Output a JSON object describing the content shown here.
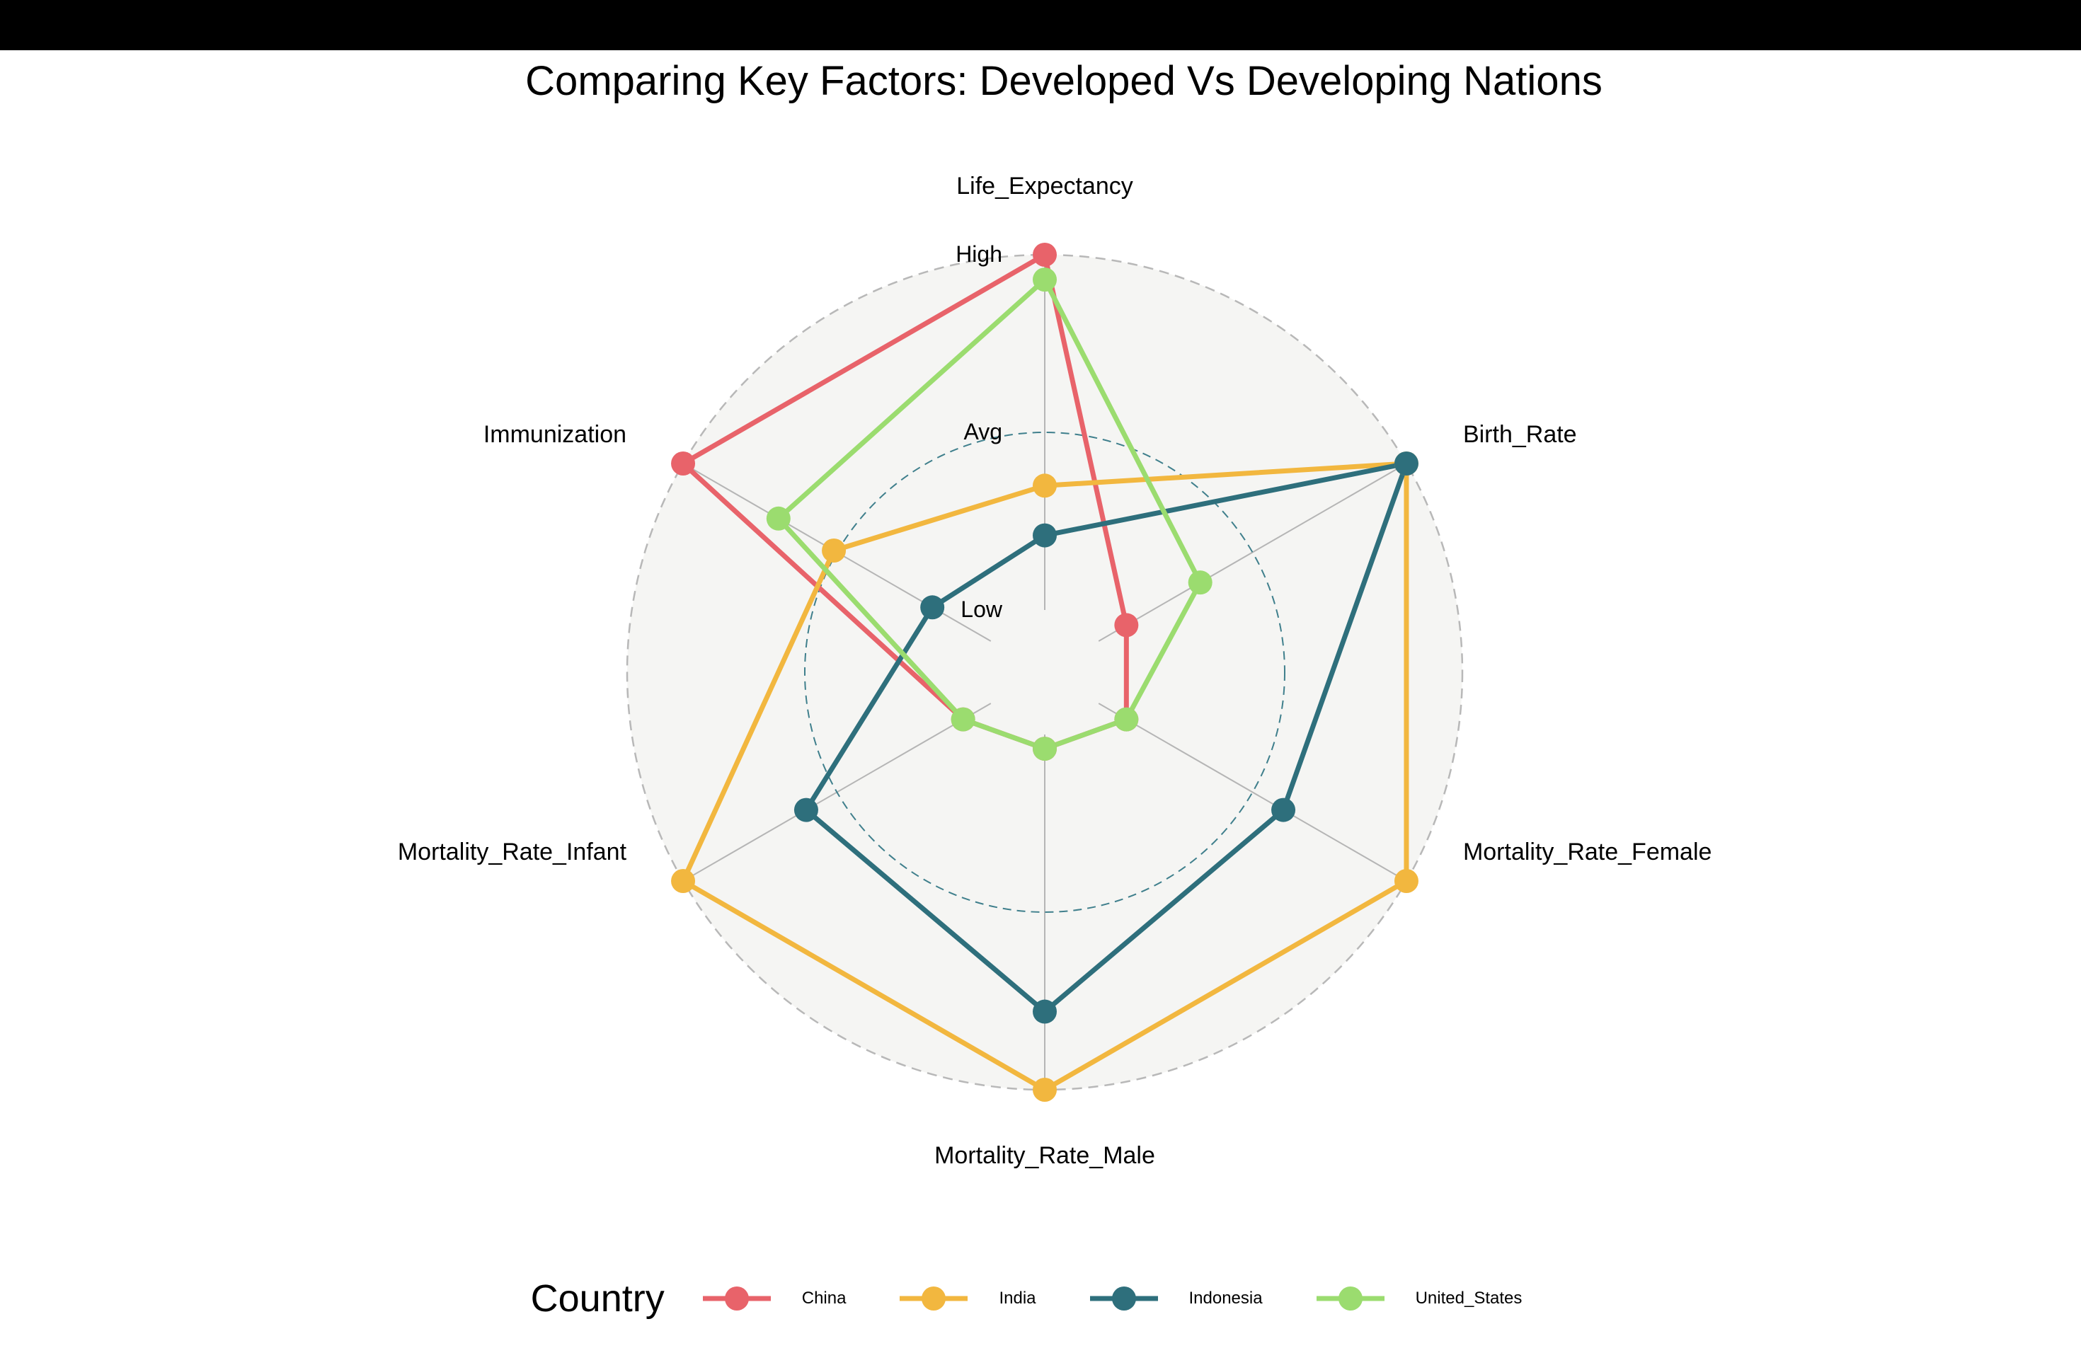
{
  "chart_data": {
    "type": "radar",
    "title": "Comparing Key Factors: Developed Vs Developing Nations",
    "axes": [
      "Life_Expectancy",
      "Birth_Rate",
      "Mortality_Rate_Female",
      "Mortality_Rate_Male",
      "Mortality_Rate_Infant",
      "Immunization"
    ],
    "scale_labels": [
      "Low",
      "Avg",
      "High"
    ],
    "scale_values": [
      0,
      0.5,
      1
    ],
    "grid": "dashed circles at Avg and High",
    "legend": {
      "title": "Country",
      "position": "bottom"
    },
    "series": [
      {
        "name": "China",
        "color": "#e8636a",
        "values": [
          1.0,
          0.09,
          0.09,
          0.04,
          0.09,
          1.0
        ]
      },
      {
        "name": "India",
        "color": "#f2b73f",
        "values": [
          0.35,
          1.0,
          1.0,
          1.0,
          1.0,
          0.51
        ]
      },
      {
        "name": "Indonesia",
        "color": "#2e6f7c",
        "values": [
          0.21,
          1.0,
          0.6,
          0.78,
          0.6,
          0.19
        ]
      },
      {
        "name": "United_States",
        "color": "#9bdc6f",
        "values": [
          0.93,
          0.33,
          0.09,
          0.04,
          0.09,
          0.69
        ]
      }
    ]
  }
}
